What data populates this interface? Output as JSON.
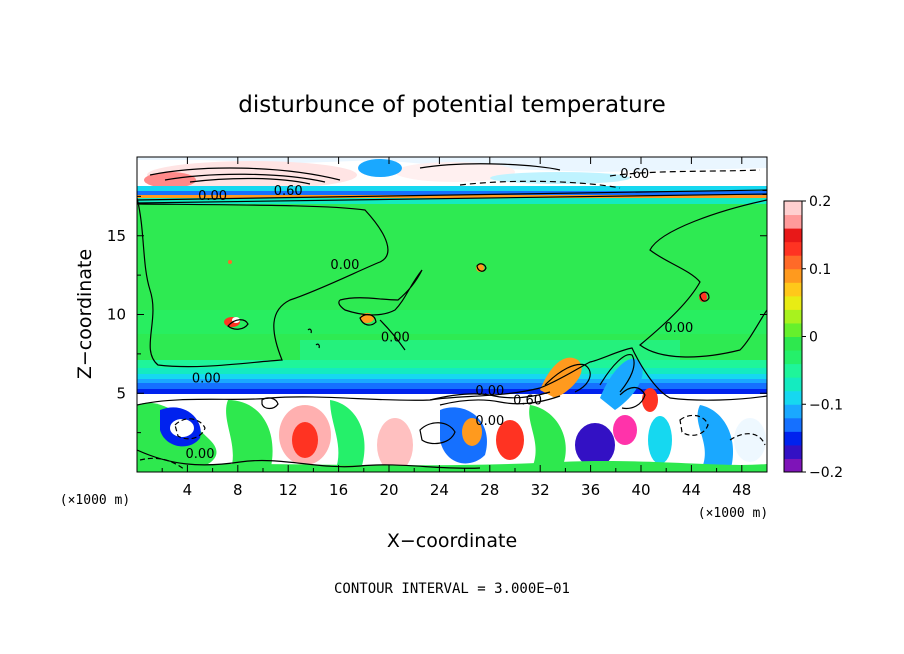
{
  "chart_data": {
    "type": "heatmap",
    "title": "disturbunce of potential temperature",
    "xlabel": "X−coordinate",
    "ylabel": "Z−coordinate",
    "x_unit": "(×1000 m)",
    "y_unit": "(×1000 m)",
    "footer": "CONTOUR INTERVAL = 3.000E−01",
    "xlim": [
      0,
      50
    ],
    "ylim": [
      0,
      20
    ],
    "x_ticks": [
      4,
      8,
      12,
      16,
      20,
      24,
      28,
      32,
      36,
      40,
      44,
      48
    ],
    "y_ticks": [
      5,
      10,
      15
    ],
    "colorbar": {
      "range": [
        -0.2,
        0.2
      ],
      "tick_values": [
        0.2,
        0.1,
        0,
        -0.1,
        -0.2
      ],
      "tick_labels": [
        "0.2",
        "0.1",
        "0",
        "−0.1",
        "−0.2"
      ],
      "colors": [
        "#7e14b8",
        "#3311c4",
        "#0022ee",
        "#1570ff",
        "#1aa8ff",
        "#16d8f0",
        "#14ebc0",
        "#1ff59a",
        "#25f06a",
        "#2ee84e",
        "#66f02c",
        "#a8f21e",
        "#e8ec14",
        "#ffc81a",
        "#ff9a1e",
        "#ff6a28",
        "#ff3322",
        "#e81818",
        "#ff9a9a",
        "#ffd0d0"
      ]
    },
    "contour_labels": [
      {
        "text": "0.00",
        "x": 6.0,
        "z": 17.6
      },
      {
        "text": "0.60",
        "x": 12.0,
        "z": 17.9
      },
      {
        "text": "0.60",
        "x": 39.5,
        "z": 19.0
      },
      {
        "text": "0.00",
        "x": 16.5,
        "z": 13.2
      },
      {
        "text": "0.00",
        "x": 20.5,
        "z": 8.6
      },
      {
        "text": "0.00",
        "x": 43.0,
        "z": 9.2
      },
      {
        "text": "0.00",
        "x": 5.5,
        "z": 6.0
      },
      {
        "text": "0.00",
        "x": 28.0,
        "z": 5.2
      },
      {
        "text": "0.60",
        "x": 31.0,
        "z": 4.6
      },
      {
        "text": "0.00",
        "x": 28.0,
        "z": 3.3
      },
      {
        "text": "0.00",
        "x": 5.0,
        "z": 1.2
      }
    ]
  }
}
